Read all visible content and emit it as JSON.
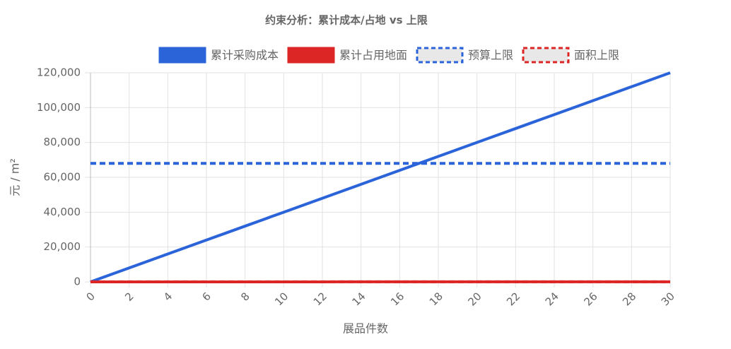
{
  "chart_data": {
    "type": "line",
    "title": "约束分析：累计成本/占地 vs 上限",
    "x": [
      0,
      1,
      2,
      3,
      4,
      5,
      6,
      7,
      8,
      9,
      10,
      11,
      12,
      13,
      14,
      15,
      16,
      17,
      18,
      19,
      20,
      21,
      22,
      23,
      24,
      25,
      26,
      27,
      28,
      29,
      30
    ],
    "series": [
      {
        "name": "累计采购成本",
        "color": "#2b63d9",
        "dashed": false,
        "values": [
          0,
          4000,
          8000,
          12000,
          16000,
          20000,
          24000,
          28000,
          32000,
          36000,
          40000,
          44000,
          48000,
          52000,
          56000,
          60000,
          64000,
          68000,
          72000,
          76000,
          80000,
          84000,
          88000,
          92000,
          96000,
          100000,
          104000,
          108000,
          112000,
          116000,
          120000
        ]
      },
      {
        "name": "累计占用地面",
        "color": "#dc2626",
        "dashed": false,
        "values": [
          0,
          2,
          4,
          6,
          8,
          10,
          12,
          14,
          16,
          18,
          20,
          22,
          24,
          26,
          28,
          30,
          32,
          34,
          36,
          38,
          40,
          42,
          44,
          46,
          48,
          50,
          52,
          54,
          56,
          58,
          60
        ]
      },
      {
        "name": "预算上限",
        "color": "#2b63d9",
        "dashed": true,
        "values": [
          68000,
          68000,
          68000,
          68000,
          68000,
          68000,
          68000,
          68000,
          68000,
          68000,
          68000,
          68000,
          68000,
          68000,
          68000,
          68000,
          68000,
          68000,
          68000,
          68000,
          68000,
          68000,
          68000,
          68000,
          68000,
          68000,
          68000,
          68000,
          68000,
          68000,
          68000
        ]
      },
      {
        "name": "面积上限",
        "color": "#dc2626",
        "dashed": true,
        "values": [
          50,
          50,
          50,
          50,
          50,
          50,
          50,
          50,
          50,
          50,
          50,
          50,
          50,
          50,
          50,
          50,
          50,
          50,
          50,
          50,
          50,
          50,
          50,
          50,
          50,
          50,
          50,
          50,
          50,
          50,
          50
        ]
      }
    ],
    "xlabel": "展品件数",
    "ylabel": "元 / m²",
    "xlim": [
      0,
      30
    ],
    "xticks": [
      0,
      2,
      4,
      6,
      8,
      10,
      12,
      14,
      16,
      18,
      20,
      22,
      24,
      26,
      28,
      30
    ],
    "ylim": [
      0,
      120000
    ],
    "yticks": [
      0,
      {
        "value": 20000,
        "label": "20,000"
      },
      {
        "value": 40000,
        "label": "40,000"
      },
      {
        "value": 60000,
        "label": "60,000"
      },
      {
        "value": 80000,
        "label": "80,000"
      },
      {
        "value": 100000,
        "label": "100,000"
      },
      {
        "value": 120000,
        "label": "120,000"
      }
    ],
    "grid": true,
    "legend": "top"
  }
}
